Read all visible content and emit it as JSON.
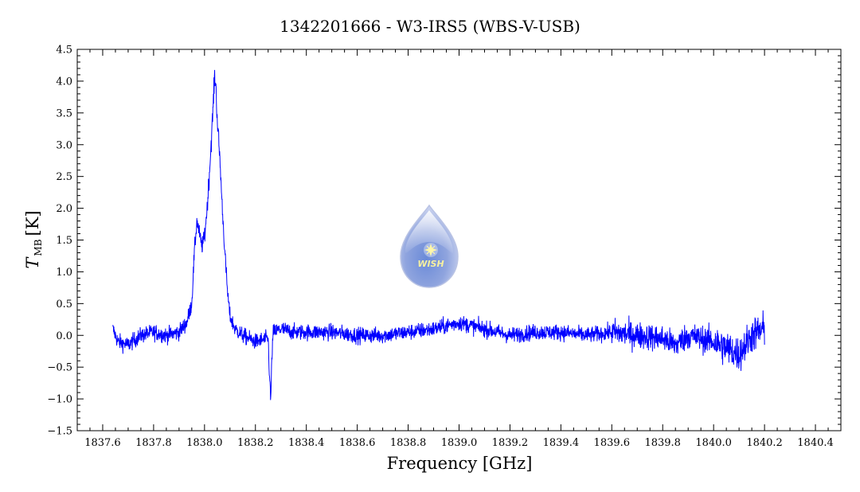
{
  "chart_data": {
    "type": "line",
    "title": "1342201666 - W3-IRS5 (WBS-V-USB)",
    "xlabel": "Frequency [GHz]",
    "ylabel_main": "T",
    "ylabel_sub": "MB",
    "ylabel_unit": "[K]",
    "xlim": [
      1837.5,
      1840.5
    ],
    "ylim": [
      -1.5,
      4.5
    ],
    "x_ticks": [
      1837.6,
      1837.8,
      1838.0,
      1838.2,
      1838.4,
      1838.6,
      1838.8,
      1839.0,
      1839.2,
      1839.4,
      1839.6,
      1839.8,
      1840.0,
      1840.2,
      1840.4
    ],
    "x_tick_labels": [
      "1837.6",
      "1837.8",
      "1838.0",
      "1838.2",
      "1838.4",
      "1838.6",
      "1838.8",
      "1839.0",
      "1839.2",
      "1839.4",
      "1839.6",
      "1839.8",
      "1840.0",
      "1840.2",
      "1840.4"
    ],
    "y_ticks": [
      -1.5,
      -1.0,
      -0.5,
      0.0,
      0.5,
      1.0,
      1.5,
      2.0,
      2.5,
      3.0,
      3.5,
      4.0,
      4.5
    ],
    "y_tick_labels": [
      "−1.5",
      "−1.0",
      "−0.5",
      "0.0",
      "0.5",
      "1.0",
      "1.5",
      "2.0",
      "2.5",
      "3.0",
      "3.5",
      "4.0",
      "4.5"
    ],
    "grid": false,
    "series": [
      {
        "color": "#0000ff",
        "x": [
          1837.64,
          1837.66,
          1837.7,
          1837.75,
          1837.8,
          1837.85,
          1837.9,
          1837.93,
          1837.95,
          1837.96,
          1837.97,
          1837.98,
          1837.99,
          1838.0,
          1838.01,
          1838.02,
          1838.03,
          1838.04,
          1838.045,
          1838.05,
          1838.06,
          1838.07,
          1838.08,
          1838.09,
          1838.1,
          1838.12,
          1838.15,
          1838.2,
          1838.25,
          1838.255,
          1838.26,
          1838.265,
          1838.27,
          1838.3,
          1838.35,
          1838.4,
          1838.5,
          1838.6,
          1838.7,
          1838.8,
          1838.9,
          1838.95,
          1839.0,
          1839.05,
          1839.1,
          1839.2,
          1839.3,
          1839.4,
          1839.5,
          1839.6,
          1839.7,
          1839.8,
          1839.85,
          1839.9,
          1840.0,
          1840.05,
          1840.1,
          1840.15,
          1840.2
        ],
        "y": [
          0.1,
          -0.1,
          -0.15,
          0.0,
          0.05,
          0.0,
          0.05,
          0.2,
          0.5,
          1.3,
          1.8,
          1.6,
          1.4,
          1.55,
          2.0,
          2.6,
          3.3,
          4.1,
          3.9,
          3.4,
          2.8,
          2.0,
          1.3,
          0.7,
          0.3,
          0.1,
          0.0,
          -0.1,
          -0.05,
          -0.6,
          -1.05,
          -0.3,
          0.05,
          0.1,
          0.05,
          0.05,
          0.05,
          0.0,
          0.0,
          0.05,
          0.1,
          0.15,
          0.2,
          0.15,
          0.1,
          0.0,
          0.05,
          0.05,
          0.0,
          0.05,
          0.0,
          -0.05,
          -0.15,
          0.0,
          -0.1,
          -0.2,
          -0.3,
          0.0,
          0.1
        ]
      }
    ]
  },
  "logo": {
    "text": "WISH"
  }
}
